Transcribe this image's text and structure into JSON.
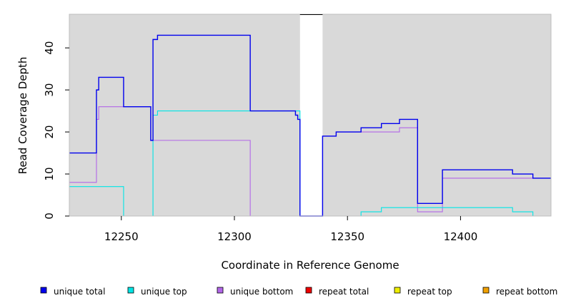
{
  "chart_data": {
    "type": "line",
    "title": "",
    "xlabel": "Coordinate in Reference Genome",
    "ylabel": "Read Coverage Depth",
    "xlim": [
      12227,
      12440
    ],
    "ylim": [
      0,
      48
    ],
    "x_ticks": [
      12250,
      12300,
      12350,
      12400
    ],
    "y_ticks": [
      0,
      10,
      20,
      30,
      40
    ],
    "background": "#d9d9d9",
    "grid": false,
    "legend_position": "bottom",
    "gap": [
      12329,
      12339
    ],
    "series": [
      {
        "name": "unique total",
        "color": "#0000ee",
        "steps": [
          [
            12227,
            15
          ],
          [
            12239,
            30
          ],
          [
            12240,
            33
          ],
          [
            12251,
            26
          ],
          [
            12263,
            18
          ],
          [
            12264,
            42
          ],
          [
            12266,
            43
          ],
          [
            12307,
            25
          ],
          [
            12327,
            24
          ],
          [
            12328,
            23
          ],
          [
            12329,
            0
          ],
          [
            12339,
            19
          ],
          [
            12345,
            20
          ],
          [
            12356,
            21
          ],
          [
            12365,
            22
          ],
          [
            12373,
            23
          ],
          [
            12381,
            3
          ],
          [
            12392,
            11
          ],
          [
            12423,
            10
          ],
          [
            12432,
            9
          ],
          [
            12440,
            9
          ]
        ]
      },
      {
        "name": "unique top",
        "color": "#00e5e5",
        "steps": [
          [
            12227,
            7
          ],
          [
            12251,
            0
          ],
          [
            12264,
            24
          ],
          [
            12266,
            25
          ],
          [
            12329,
            0
          ],
          [
            12356,
            1
          ],
          [
            12365,
            2
          ],
          [
            12423,
            1
          ],
          [
            12432,
            0
          ],
          [
            12440,
            0
          ]
        ]
      },
      {
        "name": "unique bottom",
        "color": "#b266e8",
        "steps": [
          [
            12227,
            8
          ],
          [
            12239,
            23
          ],
          [
            12240,
            26
          ],
          [
            12263,
            18
          ],
          [
            12307,
            0
          ],
          [
            12339,
            19
          ],
          [
            12345,
            20
          ],
          [
            12373,
            21
          ],
          [
            12381,
            1
          ],
          [
            12392,
            9
          ],
          [
            12440,
            9
          ]
        ]
      },
      {
        "name": "repeat total",
        "color": "#ee0000",
        "steps": [
          [
            12227,
            0
          ],
          [
            12440,
            0
          ]
        ]
      },
      {
        "name": "repeat top",
        "color": "#eeee00",
        "steps": [
          [
            12227,
            0
          ],
          [
            12440,
            0
          ]
        ]
      },
      {
        "name": "repeat bottom",
        "color": "#f0a000",
        "steps": [
          [
            12227,
            0
          ],
          [
            12440,
            0
          ]
        ]
      }
    ]
  }
}
